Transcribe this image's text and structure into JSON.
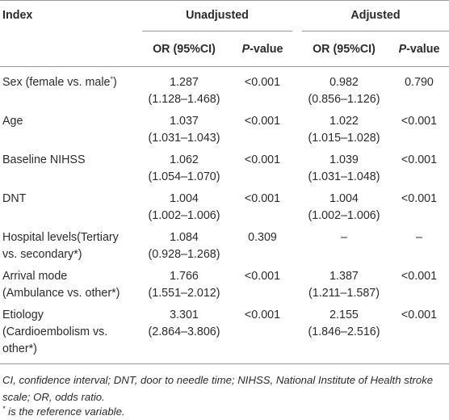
{
  "headers": {
    "index": "Index",
    "unadjusted": "Unadjusted",
    "adjusted": "Adjusted",
    "or_ci": "OR (95%CI)",
    "p_italic": "P",
    "p_rest": "-value"
  },
  "rows": [
    {
      "label": [
        "Sex (female vs. male",
        ""
      ],
      "label_sup": "*",
      "label_after": ")",
      "u_or": "1.287",
      "u_ci": "(1.128–1.468)",
      "u_p": "<0.001",
      "a_or": "0.982",
      "a_ci": "(0.856–1.126)",
      "a_p": "0.790"
    },
    {
      "label": [
        "Age"
      ],
      "u_or": "1.037",
      "u_ci": "(1.031–1.043)",
      "u_p": "<0.001",
      "a_or": "1.022",
      "a_ci": "(1.015–1.028)",
      "a_p": "<0.001"
    },
    {
      "label": [
        "Baseline NIHSS"
      ],
      "u_or": "1.062",
      "u_ci": "(1.054–1.070)",
      "u_p": "<0.001",
      "a_or": "1.039",
      "a_ci": "(1.031–1.048)",
      "a_p": "<0.001"
    },
    {
      "label": [
        "DNT"
      ],
      "u_or": "1.004",
      "u_ci": "(1.002–1.006)",
      "u_p": "<0.001",
      "a_or": "1.004",
      "a_ci": "(1.002–1.006)",
      "a_p": "<0.001"
    },
    {
      "label": [
        "Hospital levels(Tertiary",
        "vs. secondary*)"
      ],
      "u_or": "1.084",
      "u_ci": "(0.928–1.268)",
      "u_p": "0.309",
      "a_or": "–",
      "a_ci": "",
      "a_p": "–"
    },
    {
      "label": [
        "Arrival mode",
        "(Ambulance vs. other*)"
      ],
      "u_or": "1.766",
      "u_ci": "(1.551–2.012)",
      "u_p": "<0.001",
      "a_or": "1.387",
      "a_ci": "(1.211–1.587)",
      "a_p": "<0.001"
    },
    {
      "label": [
        "Etiology",
        "(Cardioembolism vs.",
        "other*)"
      ],
      "u_or": "3.301",
      "u_ci": "(2.864–3.806)",
      "u_p": "<0.001",
      "a_or": "2.155",
      "a_ci": "(1.846–2.516)",
      "a_p": "<0.001"
    }
  ],
  "footnotes": {
    "abbrev_line1": "CI, confidence interval; DNT, door to needle time; NIHSS, National Institute of Health stroke",
    "abbrev_line2": "scale; OR, odds ratio.",
    "ref_sup": "*",
    "ref_text": " is the reference variable."
  }
}
